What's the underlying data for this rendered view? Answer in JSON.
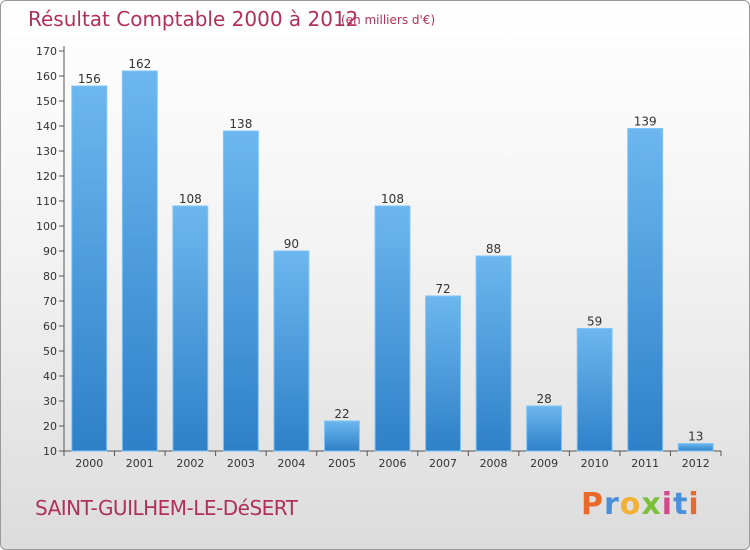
{
  "header": {
    "title": "Résultat Comptable 2000 à 2012",
    "subtitle": "(en milliers d'€)"
  },
  "footer": {
    "town": "SAINT-GUILHEM-LE-DéSERT",
    "logo": {
      "letters": [
        "P",
        "r",
        "o",
        "x",
        "i",
        "t",
        "i"
      ],
      "colors": [
        "#e9692c",
        "#4a8fd8",
        "#f2b134",
        "#7bbf3a",
        "#d04a8a",
        "#4a8fd8",
        "#e9692c"
      ]
    }
  },
  "colors": {
    "bar_light": "#6cb7ef",
    "bar_dark": "#2e80c8",
    "title": "#b0305a"
  },
  "chart_data": {
    "type": "bar",
    "title": "Résultat Comptable 2000 à 2012",
    "xlabel": "",
    "ylabel": "",
    "categories": [
      "2000",
      "2001",
      "2002",
      "2003",
      "2004",
      "2005",
      "2006",
      "2007",
      "2008",
      "2009",
      "2010",
      "2011",
      "2012"
    ],
    "values": [
      156,
      162,
      108,
      138,
      90,
      22,
      108,
      72,
      88,
      28,
      59,
      139,
      13
    ],
    "ylim": [
      10,
      170
    ],
    "yticks": [
      10,
      20,
      30,
      40,
      50,
      60,
      70,
      80,
      90,
      100,
      110,
      120,
      130,
      140,
      150,
      160,
      170
    ],
    "grid": false,
    "legend": "none"
  }
}
